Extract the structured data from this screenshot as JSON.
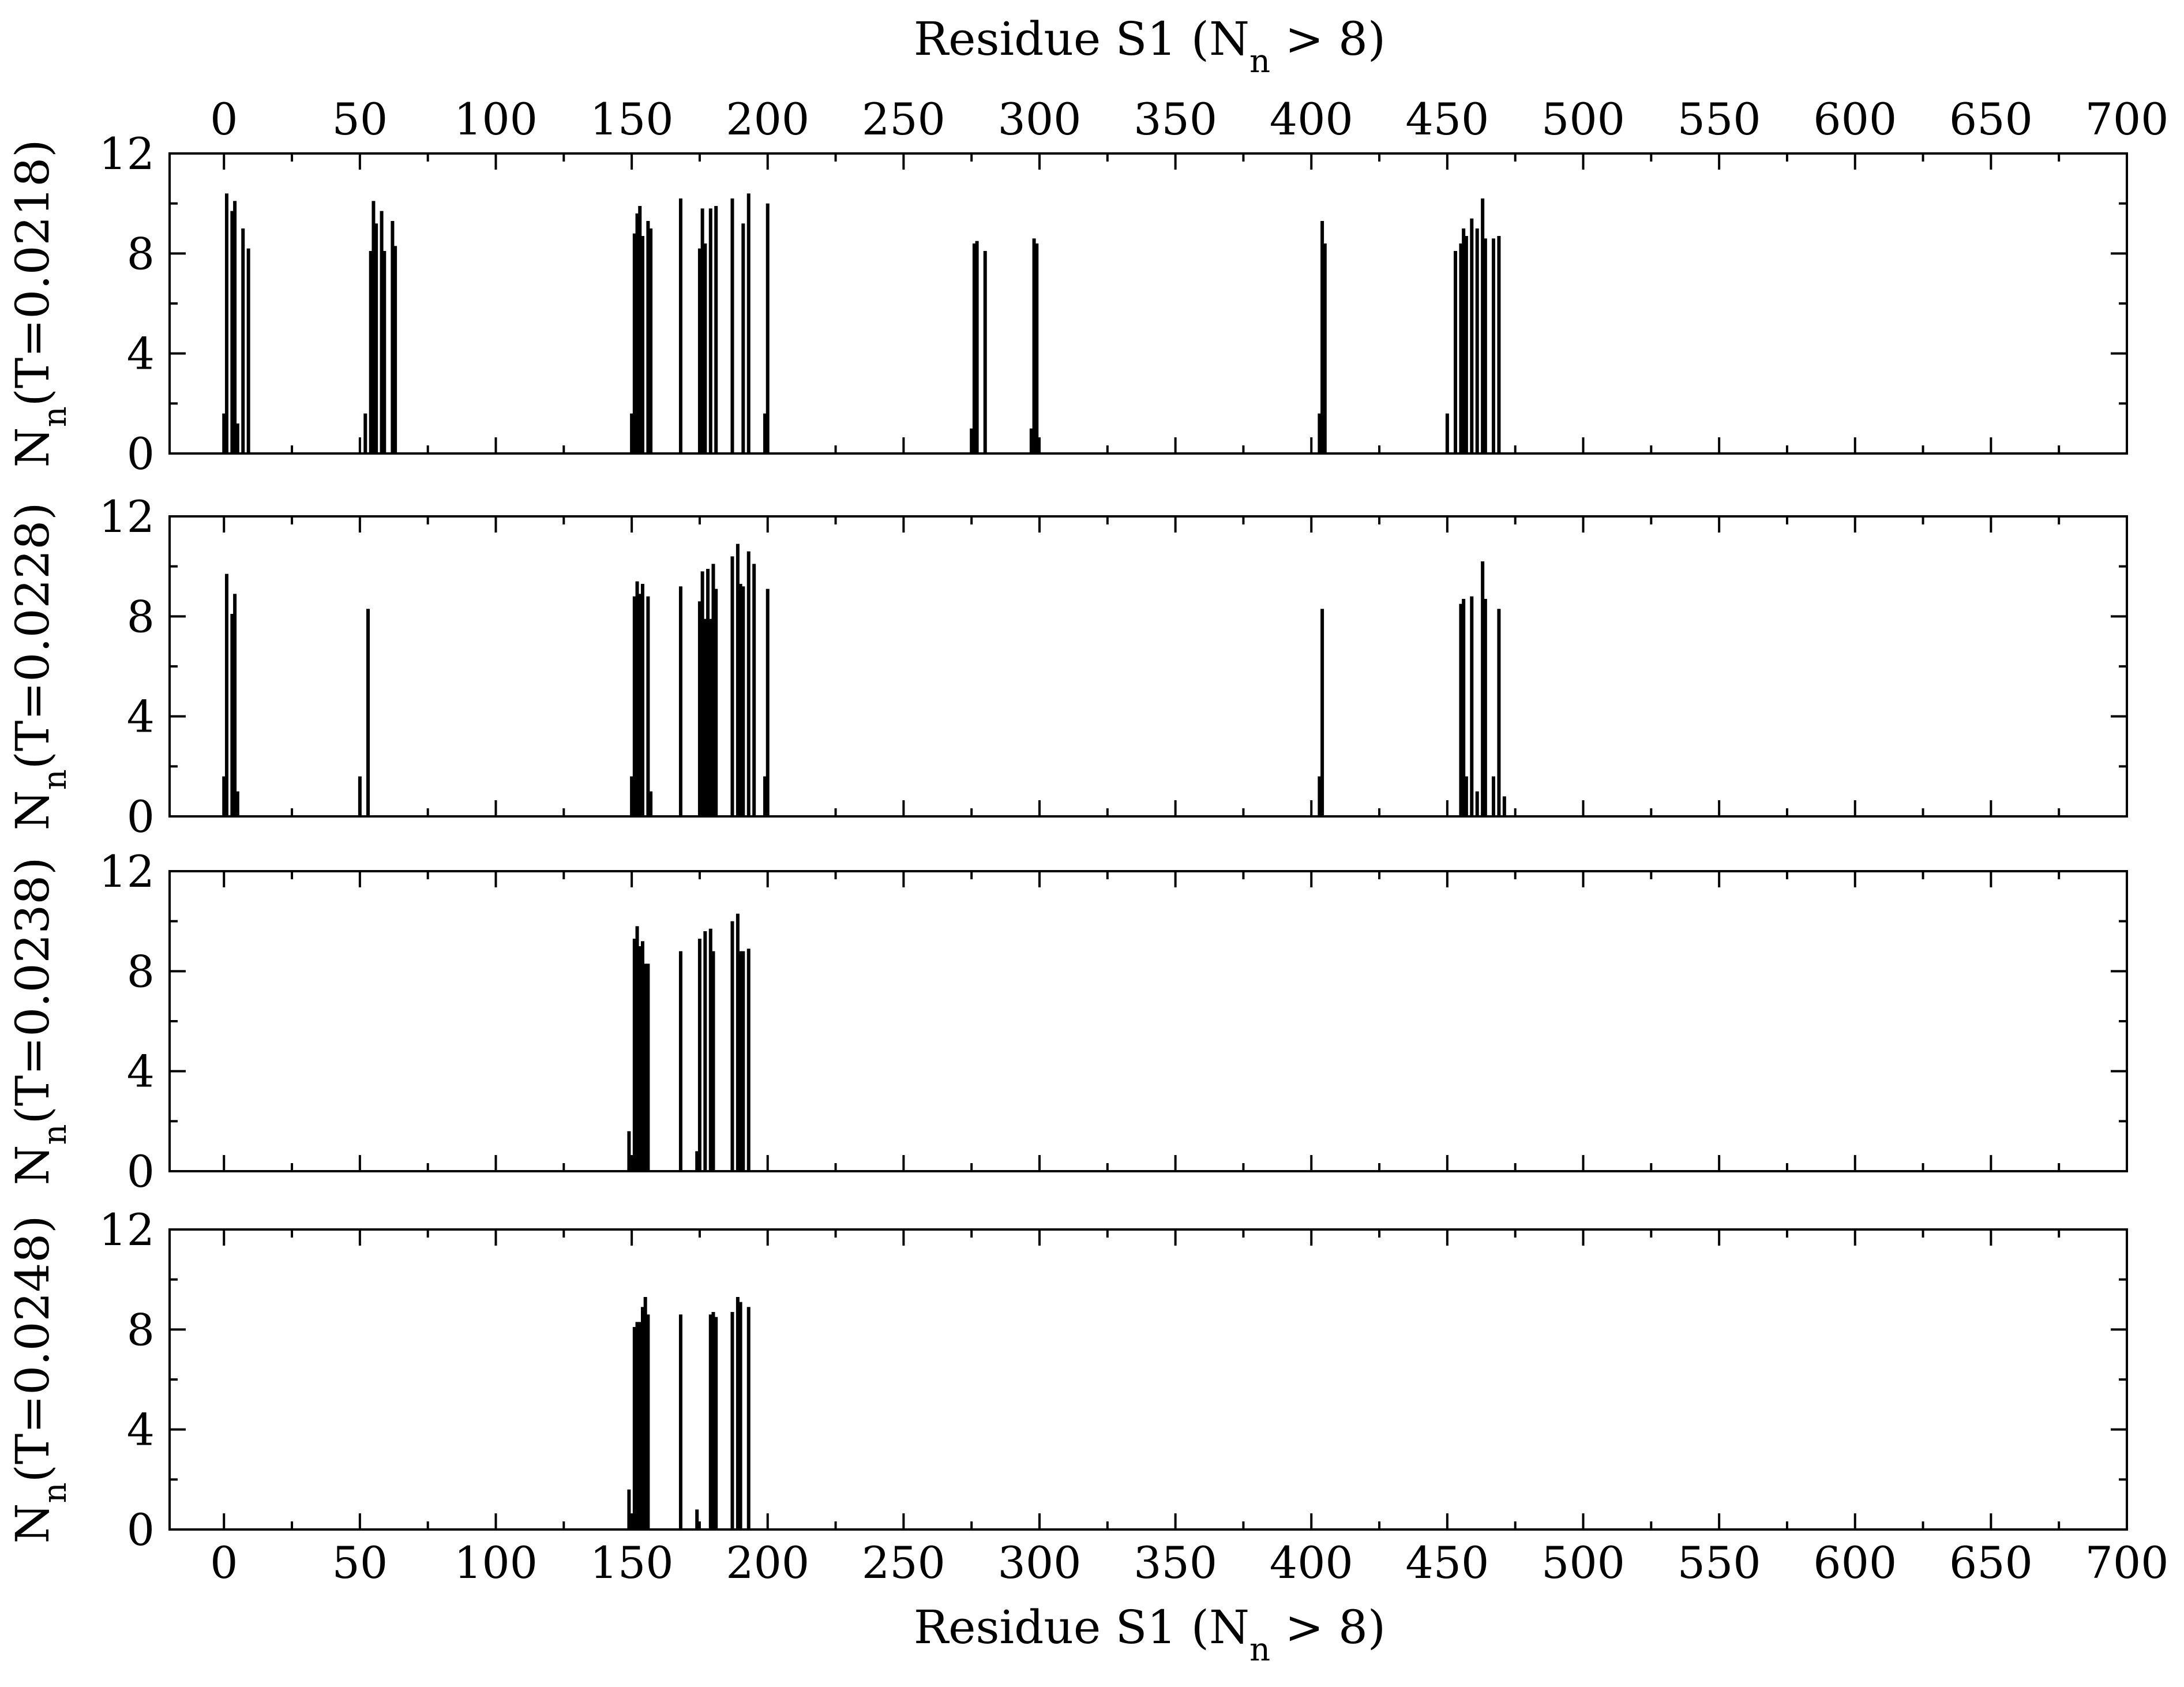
{
  "figure": {
    "top_xlabel": {
      "base": "Residue S1 (N",
      "sub": "n",
      "rest": " > 8)"
    },
    "bottom_xlabel": {
      "base": "Residue S1 (N",
      "sub": "n",
      "rest": " > 8)"
    }
  },
  "chart_data": [
    {
      "type": "bar",
      "ylabel": {
        "base": "N",
        "sub": "n",
        "rest": "(T=0.0218)"
      },
      "xlim": [
        -20,
        700
      ],
      "ylim": [
        0,
        12
      ],
      "xticks": [
        0,
        50,
        100,
        150,
        200,
        250,
        300,
        350,
        400,
        450,
        500,
        550,
        600,
        650,
        700
      ],
      "xtick_labels": [
        "0",
        "50",
        "100",
        "150",
        "200",
        "250",
        "300",
        "350",
        "400",
        "450",
        "500",
        "550",
        "600",
        "650",
        "700"
      ],
      "yticks": [
        0,
        4,
        8,
        12
      ],
      "ytick_labels": [
        "0",
        "4",
        "8",
        "12"
      ],
      "x": [
        0,
        1,
        3,
        4,
        5,
        7,
        9,
        52,
        54,
        55,
        56,
        58,
        59,
        62,
        63,
        150,
        151,
        152,
        153,
        154,
        156,
        157,
        168,
        175,
        176,
        177,
        179,
        181,
        187,
        191,
        193,
        199,
        200,
        275,
        276,
        277,
        280,
        297,
        298,
        299,
        403,
        404,
        405,
        450,
        453,
        455,
        456,
        457,
        459,
        461,
        463,
        464,
        467,
        469
      ],
      "y": [
        1.6,
        10.4,
        9.7,
        10.1,
        1.2,
        9.0,
        8.2,
        1.6,
        8.1,
        10.1,
        9.2,
        9.7,
        8.1,
        9.3,
        8.3,
        1.6,
        8.8,
        9.6,
        9.9,
        8.7,
        9.3,
        9.0,
        10.2,
        8.2,
        9.8,
        8.4,
        9.8,
        9.9,
        10.2,
        9.2,
        10.4,
        1.6,
        10.0,
        1.0,
        8.4,
        8.5,
        8.1,
        1.0,
        8.6,
        8.4,
        1.6,
        9.3,
        8.4,
        1.6,
        8.1,
        8.4,
        9.0,
        8.7,
        9.4,
        9.0,
        10.2,
        8.6,
        8.6,
        8.7
      ]
    },
    {
      "type": "bar",
      "ylabel": {
        "base": "N",
        "sub": "n",
        "rest": "(T=0.0228)"
      },
      "xlim": [
        -20,
        700
      ],
      "ylim": [
        0,
        12
      ],
      "xticks": [
        0,
        50,
        100,
        150,
        200,
        250,
        300,
        350,
        400,
        450,
        500,
        550,
        600,
        650,
        700
      ],
      "yticks": [
        0,
        4,
        8,
        12
      ],
      "ytick_labels": [
        "0",
        "4",
        "8",
        "12"
      ],
      "x": [
        0,
        1,
        3,
        4,
        5,
        50,
        53,
        150,
        151,
        152,
        153,
        154,
        156,
        157,
        168,
        175,
        176,
        177,
        178,
        179,
        180,
        181,
        187,
        189,
        190,
        191,
        193,
        195,
        199,
        200,
        403,
        404,
        455,
        456,
        457,
        459,
        461,
        463,
        464,
        467,
        469,
        471
      ],
      "y": [
        1.6,
        9.7,
        8.1,
        8.9,
        1.0,
        1.6,
        8.3,
        1.6,
        8.8,
        9.4,
        8.9,
        9.3,
        8.8,
        1.0,
        9.2,
        8.6,
        9.8,
        7.9,
        9.9,
        7.9,
        10.1,
        9.1,
        10.4,
        10.9,
        9.3,
        9.2,
        10.6,
        10.1,
        1.6,
        9.1,
        1.6,
        8.3,
        8.5,
        8.7,
        1.6,
        8.8,
        1.0,
        10.2,
        8.7,
        1.6,
        8.3,
        0.8
      ]
    },
    {
      "type": "bar",
      "ylabel": {
        "base": "N",
        "sub": "n",
        "rest": "(T=0.0238)"
      },
      "xlim": [
        -20,
        700
      ],
      "ylim": [
        0,
        12
      ],
      "xticks": [
        0,
        50,
        100,
        150,
        200,
        250,
        300,
        350,
        400,
        450,
        500,
        550,
        600,
        650,
        700
      ],
      "yticks": [
        0,
        4,
        8,
        12
      ],
      "ytick_labels": [
        "0",
        "4",
        "8",
        "12"
      ],
      "x": [
        149,
        151,
        152,
        153,
        154,
        155,
        156,
        168,
        174,
        175,
        177,
        179,
        180,
        187,
        189,
        190,
        191,
        193
      ],
      "y": [
        1.6,
        9.3,
        9.8,
        9.0,
        9.2,
        8.3,
        8.3,
        8.8,
        0.8,
        9.3,
        9.6,
        9.7,
        8.8,
        10.0,
        10.3,
        8.8,
        8.8,
        8.9
      ]
    },
    {
      "type": "bar",
      "ylabel": {
        "base": "N",
        "sub": "n",
        "rest": "(T=0.0248)"
      },
      "xlim": [
        -20,
        700
      ],
      "ylim": [
        0,
        12
      ],
      "xticks": [
        0,
        50,
        100,
        150,
        200,
        250,
        300,
        350,
        400,
        450,
        500,
        550,
        600,
        650,
        700
      ],
      "xtick_labels": [
        "0",
        "50",
        "100",
        "150",
        "200",
        "250",
        "300",
        "350",
        "400",
        "450",
        "500",
        "550",
        "600",
        "650",
        "700"
      ],
      "yticks": [
        0,
        4,
        8,
        12
      ],
      "ytick_labels": [
        "0",
        "4",
        "8",
        "12"
      ],
      "x": [
        149,
        151,
        152,
        153,
        154,
        155,
        156,
        168,
        174,
        179,
        180,
        181,
        187,
        189,
        190,
        193
      ],
      "y": [
        1.6,
        8.1,
        8.3,
        8.3,
        8.9,
        9.3,
        8.6,
        8.6,
        0.8,
        8.6,
        8.7,
        8.5,
        8.7,
        9.3,
        9.1,
        8.9
      ]
    }
  ]
}
